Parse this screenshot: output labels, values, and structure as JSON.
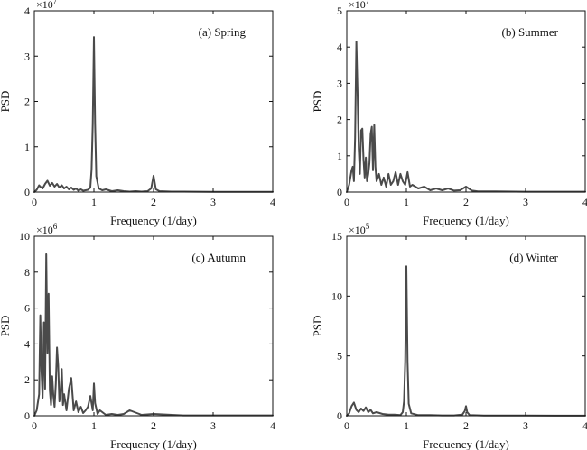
{
  "style": {
    "line_color": "#4a4a4a",
    "axis_color": "#111111"
  },
  "chart_data": [
    {
      "type": "line",
      "title": "(a) Spring",
      "xlabel": "Frequency (1/day)",
      "ylabel": "PSD",
      "exponent": "7",
      "xlim": [
        0,
        4
      ],
      "ylim": [
        0,
        4
      ],
      "xticks": [
        0,
        1,
        2,
        3,
        4
      ],
      "yticks": [
        0,
        1,
        2,
        3,
        4
      ],
      "grid": false,
      "x": [
        0,
        0.04,
        0.08,
        0.1,
        0.14,
        0.18,
        0.22,
        0.26,
        0.3,
        0.34,
        0.38,
        0.42,
        0.46,
        0.5,
        0.54,
        0.58,
        0.62,
        0.66,
        0.7,
        0.74,
        0.78,
        0.82,
        0.86,
        0.9,
        0.94,
        0.96,
        0.98,
        1.0,
        1.02,
        1.04,
        1.08,
        1.14,
        1.2,
        1.3,
        1.4,
        1.5,
        1.6,
        1.7,
        1.8,
        1.9,
        1.96,
        2.0,
        2.04,
        2.1,
        2.3,
        2.5,
        3.0,
        3.5,
        4.0
      ],
      "y": [
        0,
        0.05,
        0.15,
        0.12,
        0.08,
        0.18,
        0.25,
        0.14,
        0.2,
        0.12,
        0.18,
        0.1,
        0.15,
        0.08,
        0.12,
        0.06,
        0.1,
        0.05,
        0.08,
        0.03,
        0.06,
        0.03,
        0.04,
        0.05,
        0.1,
        0.5,
        1.5,
        3.42,
        1.5,
        0.35,
        0.08,
        0.04,
        0.06,
        0.02,
        0.04,
        0.02,
        0.01,
        0.02,
        0.01,
        0.02,
        0.08,
        0.36,
        0.06,
        0.02,
        0.01,
        0.01,
        0.005,
        0.005,
        0.005
      ]
    },
    {
      "type": "line",
      "title": "(b) Summer",
      "xlabel": "Frequency (1/day)",
      "ylabel": "PSD",
      "exponent": "7",
      "xlim": [
        0,
        4
      ],
      "ylim": [
        0,
        5
      ],
      "xticks": [
        0,
        1,
        2,
        3,
        4
      ],
      "yticks": [
        0,
        1,
        2,
        3,
        4,
        5
      ],
      "grid": false,
      "x": [
        0,
        0.04,
        0.08,
        0.1,
        0.12,
        0.14,
        0.16,
        0.18,
        0.2,
        0.22,
        0.24,
        0.26,
        0.28,
        0.3,
        0.32,
        0.34,
        0.36,
        0.38,
        0.4,
        0.42,
        0.44,
        0.46,
        0.48,
        0.5,
        0.54,
        0.58,
        0.62,
        0.66,
        0.7,
        0.74,
        0.78,
        0.82,
        0.86,
        0.9,
        0.94,
        0.98,
        1.02,
        1.06,
        1.1,
        1.2,
        1.3,
        1.4,
        1.5,
        1.6,
        1.7,
        1.8,
        1.9,
        2.0,
        2.1,
        2.2,
        2.5,
        3.0,
        3.5,
        4.0
      ],
      "y": [
        0,
        0.2,
        0.6,
        0.7,
        0.3,
        1.5,
        4.15,
        2.8,
        1.2,
        0.5,
        1.7,
        1.75,
        0.9,
        0.4,
        0.95,
        0.3,
        0.5,
        0.8,
        1.6,
        1.8,
        0.6,
        1.85,
        0.7,
        0.3,
        0.5,
        0.2,
        0.4,
        0.15,
        0.5,
        0.2,
        0.3,
        0.55,
        0.2,
        0.5,
        0.3,
        0.2,
        0.55,
        0.15,
        0.2,
        0.1,
        0.15,
        0.05,
        0.1,
        0.05,
        0.1,
        0.04,
        0.05,
        0.15,
        0.04,
        0.02,
        0.02,
        0.01,
        0.01,
        0.01
      ]
    },
    {
      "type": "line",
      "title": "(c) Autumn",
      "xlabel": "Frequency (1/day)",
      "ylabel": "PSD",
      "exponent": "6",
      "xlim": [
        0,
        4
      ],
      "ylim": [
        0,
        10
      ],
      "xticks": [
        0,
        1,
        2,
        3,
        4
      ],
      "yticks": [
        0,
        2,
        4,
        6,
        8,
        10
      ],
      "grid": false,
      "x": [
        0,
        0.04,
        0.08,
        0.1,
        0.12,
        0.14,
        0.16,
        0.18,
        0.2,
        0.22,
        0.24,
        0.26,
        0.28,
        0.3,
        0.32,
        0.34,
        0.36,
        0.38,
        0.4,
        0.42,
        0.44,
        0.46,
        0.48,
        0.5,
        0.54,
        0.58,
        0.62,
        0.66,
        0.7,
        0.74,
        0.78,
        0.82,
        0.86,
        0.9,
        0.94,
        0.98,
        1.0,
        1.02,
        1.06,
        1.1,
        1.2,
        1.3,
        1.4,
        1.5,
        1.6,
        1.8,
        2.0,
        2.5,
        3.0,
        3.5,
        4.0
      ],
      "y": [
        0,
        0.3,
        1.2,
        5.6,
        2.5,
        1.0,
        5.2,
        1.5,
        9.0,
        3.5,
        6.8,
        1.4,
        0.6,
        2.2,
        1.1,
        0.5,
        1.8,
        3.8,
        2.8,
        0.8,
        1.2,
        2.6,
        0.6,
        1.2,
        0.3,
        1.5,
        2.1,
        0.3,
        0.8,
        0.2,
        0.5,
        0.15,
        0.3,
        0.5,
        1.1,
        0.3,
        1.8,
        0.7,
        0.1,
        0.3,
        0.05,
        0.1,
        0.05,
        0.1,
        0.3,
        0.05,
        0.1,
        0.02,
        0.02,
        0.02,
        0.02
      ]
    },
    {
      "type": "line",
      "title": "(d) Winter",
      "xlabel": "Frequency (1/day)",
      "ylabel": "PSD",
      "exponent": "5",
      "xlim": [
        0,
        4
      ],
      "ylim": [
        0,
        15
      ],
      "xticks": [
        0,
        1,
        2,
        3,
        4
      ],
      "yticks": [
        0,
        5,
        10,
        15
      ],
      "grid": false,
      "x": [
        0,
        0.04,
        0.08,
        0.12,
        0.16,
        0.2,
        0.24,
        0.28,
        0.32,
        0.36,
        0.4,
        0.44,
        0.5,
        0.6,
        0.7,
        0.8,
        0.9,
        0.94,
        0.96,
        0.98,
        1.0,
        1.02,
        1.04,
        1.08,
        1.2,
        1.4,
        1.6,
        1.8,
        1.94,
        1.98,
        2.0,
        2.02,
        2.06,
        2.3,
        2.6,
        3.0,
        3.5,
        4.0
      ],
      "y": [
        0,
        0.2,
        0.8,
        1.1,
        0.5,
        0.3,
        0.6,
        0.4,
        0.7,
        0.3,
        0.5,
        0.2,
        0.3,
        0.15,
        0.1,
        0.1,
        0.05,
        0.3,
        1.2,
        4.5,
        12.5,
        4.5,
        1.0,
        0.2,
        0.05,
        0.05,
        0.03,
        0.03,
        0.1,
        0.4,
        0.8,
        0.3,
        0.05,
        0.02,
        0.02,
        0.02,
        0.01,
        0.01
      ]
    }
  ]
}
